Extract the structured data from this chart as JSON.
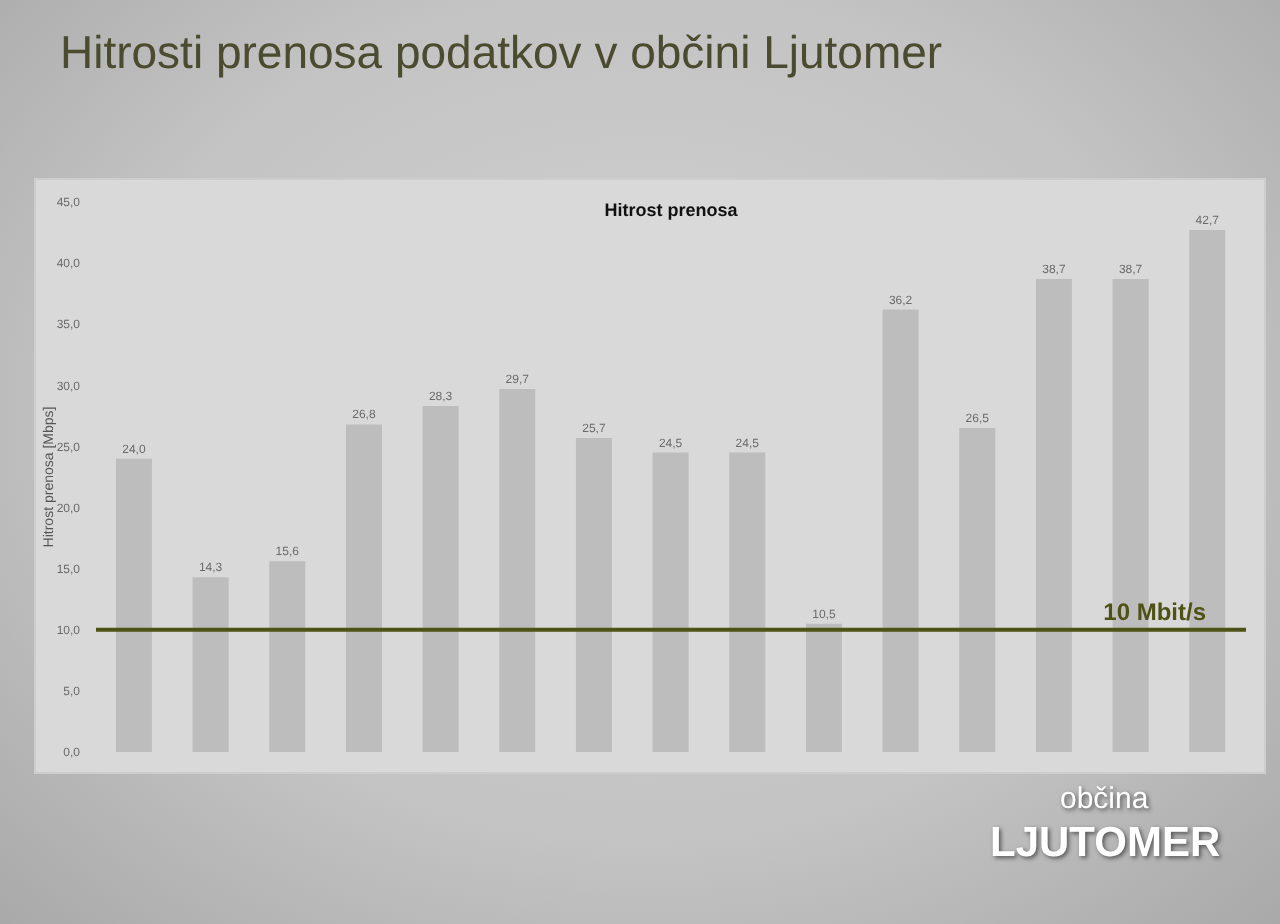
{
  "chart_data": {
    "type": "bar",
    "title": "Hitrosti prenosa podatkov v občini Ljutomer",
    "subtitle": "Hitrost prenosa",
    "ylabel": "Hitrost prenosa [Mbps]",
    "categories": [
      null,
      null,
      null,
      null,
      null,
      null,
      null,
      null,
      null,
      null,
      null,
      null,
      null,
      null,
      null
    ],
    "values": [
      24.0,
      14.3,
      15.6,
      26.8,
      28.3,
      29.7,
      25.7,
      24.5,
      24.5,
      10.5,
      36.2,
      26.5,
      38.7,
      38.7,
      42.7
    ],
    "value_labels": [
      "24,0",
      "14,3",
      "15,6",
      "26,8",
      "28,3",
      "29,7",
      "25,7",
      "24,5",
      "24,5",
      "10,5",
      "36,2",
      "26,5",
      "38,7",
      "38,7",
      "42,7"
    ],
    "color": "#bdbdbd",
    "ylim": [
      0,
      45
    ],
    "yticks": [
      {
        "value": 0,
        "label": "0,0"
      },
      {
        "value": 5,
        "label": "5,0"
      },
      {
        "value": 10,
        "label": "10,0"
      },
      {
        "value": 15,
        "label": "15,0"
      },
      {
        "value": 20,
        "label": "20,0"
      },
      {
        "value": 25,
        "label": "25,0"
      },
      {
        "value": 30,
        "label": "30,0"
      },
      {
        "value": 35,
        "label": "35,0"
      },
      {
        "value": 40,
        "label": "40,0"
      },
      {
        "value": 45,
        "label": "45,0"
      }
    ],
    "tick_labels": "y",
    "ref_lines": [
      {
        "axis": "y",
        "value": 10,
        "label": "10 Mbit/s",
        "color": "#4f5216"
      }
    ],
    "annotations": [
      "občina",
      "LJUTOMER"
    ]
  }
}
